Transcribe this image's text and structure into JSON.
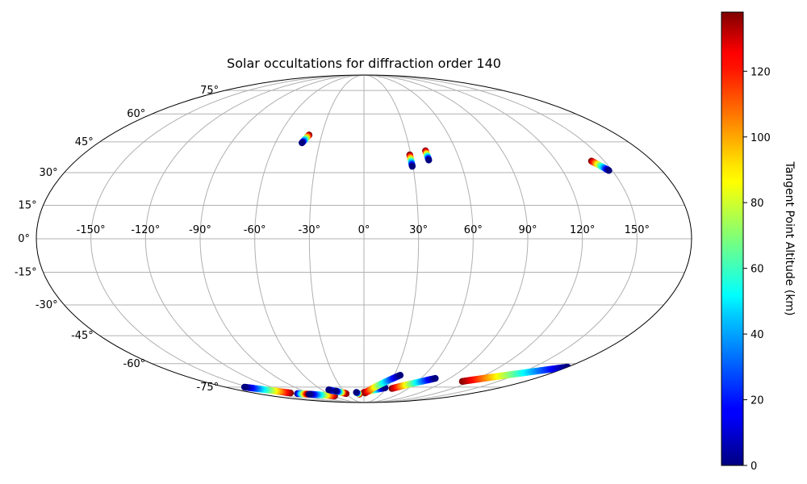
{
  "chart_data": {
    "type": "scatter",
    "title": "Solar occultations for diffraction order 140",
    "projection": "mollweide",
    "grid": true,
    "x_ticks": [
      "-150°",
      "-120°",
      "-90°",
      "-60°",
      "-30°",
      "0°",
      "30°",
      "60°",
      "90°",
      "120°",
      "150°"
    ],
    "y_ticks": [
      "-75°",
      "-60°",
      "-45°",
      "-30°",
      "-15°",
      "0°",
      "15°",
      "30°",
      "45°",
      "60°",
      "75°"
    ],
    "colorbar": {
      "label": "Tangent Point Altitude (km)",
      "colormap": "jet",
      "range": [
        0,
        138
      ],
      "ticks": [
        "0",
        "20",
        "40",
        "60",
        "80",
        "100",
        "120"
      ]
    },
    "series": [
      {
        "lon_start": -42,
        "lat_start": 44.5,
        "lon_end": -39,
        "lat_end": 48.5,
        "alt_start": 0,
        "alt_end": 138
      },
      {
        "lon_start": 29.6,
        "lat_start": 33,
        "lon_end": 29.3,
        "lat_end": 38.5,
        "alt_start": 0,
        "alt_end": 138
      },
      {
        "lon_start": 40.6,
        "lat_start": 36,
        "lon_end": 40.1,
        "lat_end": 40.5,
        "alt_start": 0,
        "alt_end": 138
      },
      {
        "lon_start": 148,
        "lat_start": 31,
        "lon_end": 142,
        "lat_end": 35.5,
        "alt_start": 0,
        "alt_end": 138
      },
      {
        "lon_start": -155,
        "lat_start": -75,
        "lon_end": -120,
        "lat_end": -79.5,
        "alt_start": 0,
        "alt_end": 138
      },
      {
        "lon_start": -97,
        "lat_start": -80.5,
        "lon_end": -112,
        "lat_end": -80,
        "alt_start": 138,
        "alt_end": 0
      },
      {
        "lon_start": -95,
        "lat_start": -80.5,
        "lon_end": -57,
        "lat_end": -82,
        "alt_start": 0,
        "alt_end": 138
      },
      {
        "lon_start": 75,
        "lat_start": -69,
        "lon_end": 38,
        "lat_end": -76,
        "alt_start": 0,
        "alt_end": 138
      },
      {
        "lon_start": 180,
        "lat_start": -62,
        "lon_end": 110,
        "lat_end": -71,
        "alt_start": 0,
        "alt_end": 138
      },
      {
        "lon_start": 28,
        "lat_start": -75.5,
        "lon_end": 0,
        "lat_end": -79,
        "alt_start": 0,
        "alt_end": 138
      },
      {
        "lon_start": 36,
        "lat_start": -67,
        "lon_end": 2,
        "lat_end": -79.5,
        "alt_start": 0,
        "alt_end": 138
      },
      {
        "lon_start": -50,
        "lat_start": -77,
        "lon_end": -30,
        "lat_end": -80,
        "alt_start": 0,
        "alt_end": 138
      },
      {
        "lon_start": -42,
        "lat_start": -78,
        "lon_end": -32,
        "lat_end": -79.5,
        "alt_start": 0,
        "alt_end": 138
      },
      {
        "lon_start": -12,
        "lat_start": -79,
        "lon_end": -8,
        "lat_end": -80.5,
        "alt_start": 0,
        "alt_end": 138
      }
    ]
  }
}
